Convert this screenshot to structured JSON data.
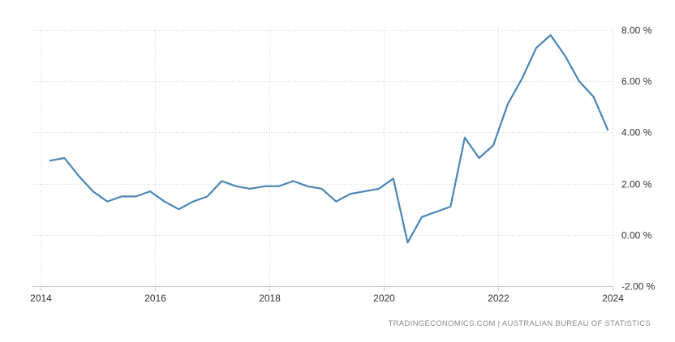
{
  "chart_data": {
    "type": "line",
    "title": "",
    "xlabel": "",
    "ylabel": "",
    "x_ticks": [
      "2014",
      "2016",
      "2018",
      "2020",
      "2022",
      "2024"
    ],
    "y_ticks": [
      "8.00 %",
      "6.00 %",
      "4.00 %",
      "2.00 %",
      "0.00 %",
      "-2.00 %"
    ],
    "ylim": [
      -2,
      8
    ],
    "xlim": [
      "2014-01",
      "2024-01"
    ],
    "y_axis_position": "right",
    "grid": true,
    "legend": "none",
    "line_color": "#4a86b5",
    "series": [
      {
        "x": [
          "2014-03",
          "2014-06",
          "2014-09",
          "2014-12",
          "2015-03",
          "2015-06",
          "2015-09",
          "2015-12",
          "2016-03",
          "2016-06",
          "2016-09",
          "2016-12",
          "2017-03",
          "2017-06",
          "2017-09",
          "2017-12",
          "2018-03",
          "2018-06",
          "2018-09",
          "2018-12",
          "2019-03",
          "2019-06",
          "2019-09",
          "2019-12",
          "2020-03",
          "2020-06",
          "2020-09",
          "2020-12",
          "2021-03",
          "2021-06",
          "2021-09",
          "2021-12",
          "2022-03",
          "2022-06",
          "2022-09",
          "2022-12",
          "2023-03",
          "2023-06",
          "2023-09",
          "2023-12"
        ],
        "values": [
          2.9,
          3.0,
          2.3,
          1.7,
          1.3,
          1.5,
          1.5,
          1.7,
          1.3,
          1.0,
          1.3,
          1.5,
          2.1,
          1.9,
          1.8,
          1.9,
          1.9,
          2.1,
          1.9,
          1.8,
          1.3,
          1.6,
          1.7,
          1.8,
          2.2,
          -0.3,
          0.7,
          0.9,
          1.1,
          3.8,
          3.0,
          3.5,
          5.1,
          6.1,
          7.3,
          7.8,
          7.0,
          6.0,
          5.4,
          4.1
        ]
      }
    ]
  },
  "source": "TRADINGECONOMICS.COM  |  AUSTRALIAN BUREAU OF STATISTICS"
}
